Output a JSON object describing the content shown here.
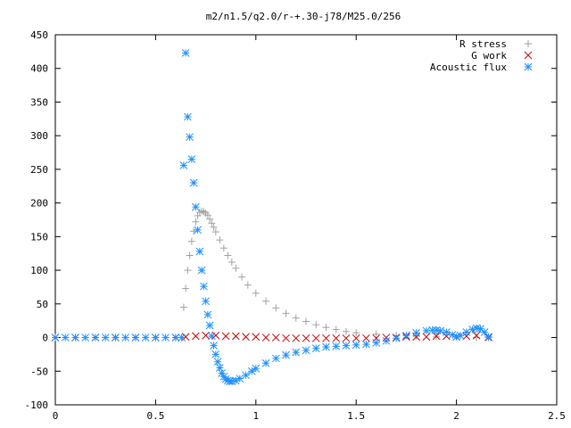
{
  "chart_data": {
    "type": "scatter",
    "title": "m2/n1.5/q2.0/r-+.30-j78/M25.0/256",
    "xlabel": "",
    "ylabel": "",
    "xlim": [
      0,
      2.5
    ],
    "ylim": [
      -100,
      450
    ],
    "xticks": [
      0,
      0.5,
      1,
      1.5,
      2,
      2.5
    ],
    "xtick_labels": [
      "0",
      "0.5",
      "1",
      "1.5",
      "2",
      "2.5"
    ],
    "yticks": [
      -100,
      -50,
      0,
      50,
      100,
      150,
      200,
      250,
      300,
      350,
      400,
      450
    ],
    "ytick_labels": [
      "-100",
      "-50",
      "0",
      "50",
      "100",
      "150",
      "200",
      "250",
      "300",
      "350",
      "400",
      "450"
    ],
    "grid": false,
    "legend_position": "top-right",
    "series": [
      {
        "name": "R stress",
        "marker": "+",
        "color": "#a0a0a0",
        "x": [
          0.0,
          0.1,
          0.2,
          0.3,
          0.4,
          0.5,
          0.6,
          0.64,
          0.65,
          0.66,
          0.67,
          0.68,
          0.69,
          0.7,
          0.71,
          0.72,
          0.73,
          0.74,
          0.75,
          0.76,
          0.77,
          0.78,
          0.79,
          0.8,
          0.82,
          0.84,
          0.86,
          0.88,
          0.9,
          0.93,
          0.96,
          1.0,
          1.05,
          1.1,
          1.15,
          1.2,
          1.25,
          1.3,
          1.35,
          1.4,
          1.45,
          1.5,
          1.6,
          1.7,
          1.8,
          1.9,
          2.0,
          2.1,
          2.16
        ],
        "y": [
          0,
          0,
          0,
          0,
          0,
          0,
          0,
          45,
          73,
          100,
          122,
          143,
          158,
          172,
          181,
          186,
          188,
          187,
          185,
          182,
          176,
          170,
          164,
          157,
          145,
          133,
          122,
          112,
          103,
          90,
          78,
          66,
          54,
          44,
          36,
          29,
          24,
          19,
          15,
          12,
          9,
          7,
          5,
          3,
          2,
          1,
          1,
          0,
          0
        ]
      },
      {
        "name": "G work",
        "marker": "x",
        "color": "#cc0000",
        "x": [
          0.0,
          0.1,
          0.2,
          0.3,
          0.4,
          0.5,
          0.6,
          0.65,
          0.7,
          0.75,
          0.8,
          0.85,
          0.9,
          0.95,
          1.0,
          1.05,
          1.1,
          1.15,
          1.2,
          1.25,
          1.3,
          1.35,
          1.4,
          1.45,
          1.5,
          1.55,
          1.6,
          1.65,
          1.7,
          1.75,
          1.8,
          1.85,
          1.9,
          1.95,
          2.0,
          2.05,
          2.1,
          2.16
        ],
        "y": [
          0,
          0,
          0,
          0,
          0,
          0,
          0,
          1,
          2,
          3,
          3,
          2,
          2,
          1,
          1,
          0,
          0,
          -1,
          -1,
          -1,
          -1,
          -1,
          -1,
          -1,
          -1,
          -1,
          -1,
          0,
          0,
          1,
          1,
          1,
          2,
          2,
          1,
          2,
          3,
          0
        ]
      },
      {
        "name": "Acoustic flux",
        "marker": "*",
        "color": "#1e90ff",
        "x": [
          0.0,
          0.05,
          0.1,
          0.15,
          0.2,
          0.25,
          0.3,
          0.35,
          0.4,
          0.45,
          0.5,
          0.55,
          0.6,
          0.63,
          0.64,
          0.65,
          0.66,
          0.67,
          0.68,
          0.69,
          0.7,
          0.71,
          0.72,
          0.73,
          0.74,
          0.75,
          0.76,
          0.77,
          0.78,
          0.79,
          0.8,
          0.81,
          0.82,
          0.83,
          0.84,
          0.85,
          0.86,
          0.87,
          0.88,
          0.9,
          0.92,
          0.95,
          0.98,
          1.0,
          1.05,
          1.1,
          1.15,
          1.2,
          1.25,
          1.3,
          1.35,
          1.4,
          1.45,
          1.5,
          1.55,
          1.6,
          1.65,
          1.7,
          1.75,
          1.8,
          1.85,
          1.88,
          1.9,
          1.92,
          1.95,
          1.98,
          2.0,
          2.02,
          2.05,
          2.08,
          2.1,
          2.12,
          2.14,
          2.16
        ],
        "y": [
          0,
          0,
          0,
          0,
          0,
          0,
          0,
          0,
          0,
          0,
          0,
          0,
          0,
          0,
          256,
          423,
          328,
          298,
          265,
          230,
          194,
          160,
          128,
          100,
          76,
          54,
          34,
          18,
          2,
          -12,
          -25,
          -36,
          -45,
          -53,
          -58,
          -62,
          -64,
          -65,
          -65,
          -64,
          -61,
          -56,
          -50,
          -46,
          -38,
          -31,
          -26,
          -22,
          -19,
          -16,
          -14,
          -13,
          -12,
          -11,
          -10,
          -8,
          -5,
          -1,
          3,
          7,
          10,
          11,
          11,
          10,
          8,
          4,
          1,
          3,
          8,
          12,
          14,
          13,
          8,
          1
        ]
      }
    ]
  }
}
